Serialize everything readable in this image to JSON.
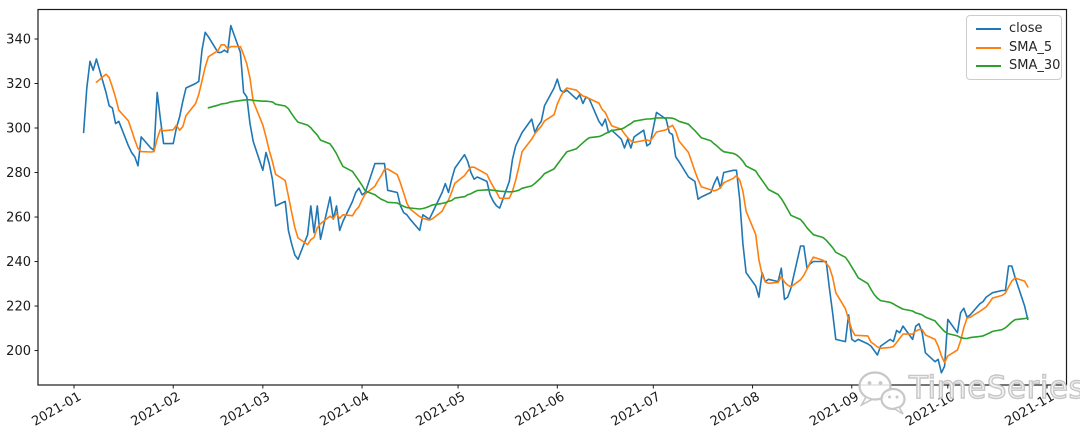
{
  "figure": {
    "watermark": {
      "text": "TimeSeries",
      "icon": "wechat-bubbles-icon",
      "color": "#c7c7c7"
    }
  },
  "chart_data": {
    "type": "line",
    "title": "",
    "xlabel": "",
    "ylabel": "",
    "grid": false,
    "legend": {
      "position": "upper right",
      "entries": [
        "close",
        "SMA_5",
        "SMA_30"
      ]
    },
    "x_axis": {
      "kind": "date",
      "start_date": "2021-01-04",
      "frequency": "business-daily",
      "tick_labels": [
        "2021-01",
        "2021-02",
        "2021-03",
        "2021-04",
        "2021-05",
        "2021-06",
        "2021-07",
        "2021-08",
        "2021-09",
        "2021-10",
        "2021-11"
      ],
      "tick_label_rotation_deg": 30,
      "xlim_dates": [
        "2020-12-21",
        "2021-11-07"
      ]
    },
    "y_axis": {
      "ticks": [
        200,
        220,
        240,
        260,
        280,
        300,
        320,
        340
      ],
      "ylim": [
        184.5,
        353
      ]
    },
    "series": [
      {
        "name": "close",
        "color": "#1f77b4",
        "values": [
          298,
          318,
          330,
          326,
          331,
          316,
          310,
          309,
          302,
          303,
          292,
          289,
          287,
          283,
          296,
          291,
          290,
          316,
          304,
          293,
          293,
          300,
          305,
          312,
          318,
          320,
          321,
          335,
          343,
          341,
          334,
          334,
          335,
          334,
          346,
          334,
          316,
          314,
          302,
          294,
          281,
          289,
          284,
          277,
          265,
          267,
          254,
          248,
          243,
          241,
          252,
          265,
          253,
          265,
          250,
          269,
          259,
          265,
          254,
          258,
          267,
          271,
          273,
          270,
          271,
          284,
          284,
          284,
          284,
          272,
          271,
          265,
          262,
          261,
          259,
          254,
          261,
          260,
          259,
          262,
          271,
          275,
          271,
          277,
          282,
          288,
          285,
          280,
          277,
          278,
          276,
          270,
          267,
          265,
          264,
          276,
          286,
          292,
          295,
          298,
          304,
          298,
          301,
          303,
          310,
          318,
          322,
          317,
          316,
          317,
          313,
          315,
          311,
          314,
          313,
          303,
          301,
          304,
          298,
          299,
          295,
          291,
          295,
          291,
          296,
          299,
          292,
          293,
          300,
          307,
          304,
          298,
          297,
          287,
          285,
          278,
          277,
          276,
          268,
          269,
          271,
          275,
          278,
          273,
          280,
          281,
          281,
          268,
          248,
          235,
          229,
          224,
          235,
          231,
          232,
          231,
          237,
          223,
          224,
          228,
          247,
          247,
          237,
          239,
          240,
          240,
          240,
          228,
          217,
          205,
          204,
          216,
          205,
          204,
          205,
          203,
          202,
          200,
          198,
          202,
          205,
          204,
          209,
          208,
          211,
          205,
          211,
          212,
          208,
          199,
          195,
          196,
          190,
          193,
          214,
          208,
          217,
          219,
          215,
          216,
          221,
          222,
          224,
          225,
          226,
          227,
          227,
          238,
          238,
          233,
          220,
          214
        ]
      },
      {
        "name": "SMA_5",
        "color": "#ff7f0e",
        "derived": "simple-moving-average",
        "window": 5,
        "source": "close"
      },
      {
        "name": "SMA_30",
        "color": "#2ca02c",
        "derived": "simple-moving-average",
        "window": 30,
        "source": "close"
      }
    ]
  }
}
